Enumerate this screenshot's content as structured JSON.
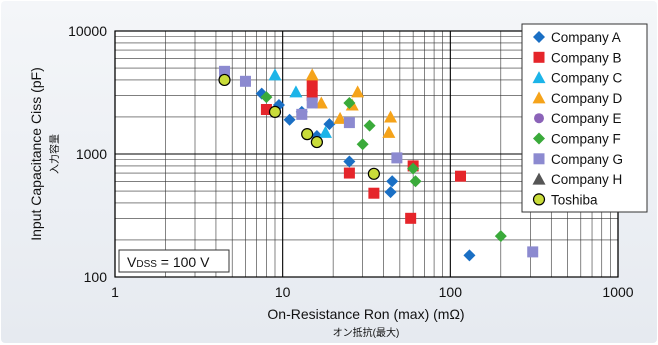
{
  "chart_data": {
    "type": "scatter",
    "xlabel": "On-Resistance Ron (max) (mΩ)",
    "xlabel_ja": "オン抵抗(最大)",
    "ylabel": "Input Capacitance Ciss (pF)",
    "ylabel_ja": "入力容量",
    "x_scale": "log",
    "y_scale": "log",
    "xlim": [
      1,
      1000
    ],
    "ylim": [
      100,
      10000
    ],
    "x_ticks": [
      {
        "value": 1,
        "label": "1"
      },
      {
        "value": 10,
        "label": "10"
      },
      {
        "value": 100,
        "label": "100"
      },
      {
        "value": 1000,
        "label": "1000"
      }
    ],
    "y_ticks": [
      {
        "value": 100,
        "label": "100"
      },
      {
        "value": 1000,
        "label": "1000"
      },
      {
        "value": 10000,
        "label": "10000"
      }
    ],
    "grid": true,
    "legend_position": "top-right",
    "annotation": {
      "main": "V",
      "sub": "DSS",
      "rest": " = 100 V"
    },
    "series": [
      {
        "name": "Company A",
        "marker": "diamond",
        "color": "#1a6fc4",
        "points": [
          [
            7.5,
            3100
          ],
          [
            9.5,
            2500
          ],
          [
            11,
            1900
          ],
          [
            13,
            2200
          ],
          [
            16,
            1400
          ],
          [
            19,
            1750
          ],
          [
            25,
            870
          ],
          [
            45,
            600
          ],
          [
            44,
            490
          ],
          [
            130,
            150
          ]
        ]
      },
      {
        "name": "Company B",
        "marker": "square",
        "color": "#e5252a",
        "points": [
          [
            8,
            2300
          ],
          [
            15,
            3600
          ],
          [
            15,
            3000
          ],
          [
            25,
            700
          ],
          [
            35,
            480
          ],
          [
            58,
            300
          ],
          [
            60,
            800
          ],
          [
            115,
            660
          ]
        ]
      },
      {
        "name": "Company C",
        "marker": "triangle",
        "color": "#1cb4e8",
        "points": [
          [
            9,
            4400
          ],
          [
            12,
            3200
          ],
          [
            18,
            1500
          ]
        ]
      },
      {
        "name": "Company D",
        "marker": "triangle",
        "color": "#f5a31a",
        "points": [
          [
            15,
            4400
          ],
          [
            17,
            2600
          ],
          [
            22,
            1950
          ],
          [
            26,
            2500
          ],
          [
            28,
            3200
          ],
          [
            43,
            1500
          ],
          [
            44,
            2000
          ]
        ]
      },
      {
        "name": "Company E",
        "marker": "circle",
        "color": "#8b63b8",
        "points": []
      },
      {
        "name": "Company F",
        "marker": "diamond",
        "color": "#3aaa3a",
        "points": [
          [
            8,
            2900
          ],
          [
            25,
            2600
          ],
          [
            30,
            1200
          ],
          [
            33,
            1700
          ],
          [
            60,
            760
          ],
          [
            62,
            600
          ],
          [
            200,
            215
          ]
        ]
      },
      {
        "name": "Company G",
        "marker": "square",
        "color": "#8c8ad0",
        "points": [
          [
            4.5,
            4700
          ],
          [
            6,
            3900
          ],
          [
            13,
            2100
          ],
          [
            15,
            2600
          ],
          [
            25,
            1800
          ],
          [
            48,
            930
          ],
          [
            310,
            160
          ]
        ]
      },
      {
        "name": "Company H",
        "marker": "triangle",
        "color": "#555555",
        "points": []
      },
      {
        "name": "Toshiba",
        "marker": "circle",
        "color": "#c9dc3a",
        "points": [
          [
            4.5,
            4000
          ],
          [
            9,
            2200
          ],
          [
            14,
            1450
          ],
          [
            16,
            1250
          ],
          [
            35,
            690
          ]
        ]
      }
    ]
  }
}
